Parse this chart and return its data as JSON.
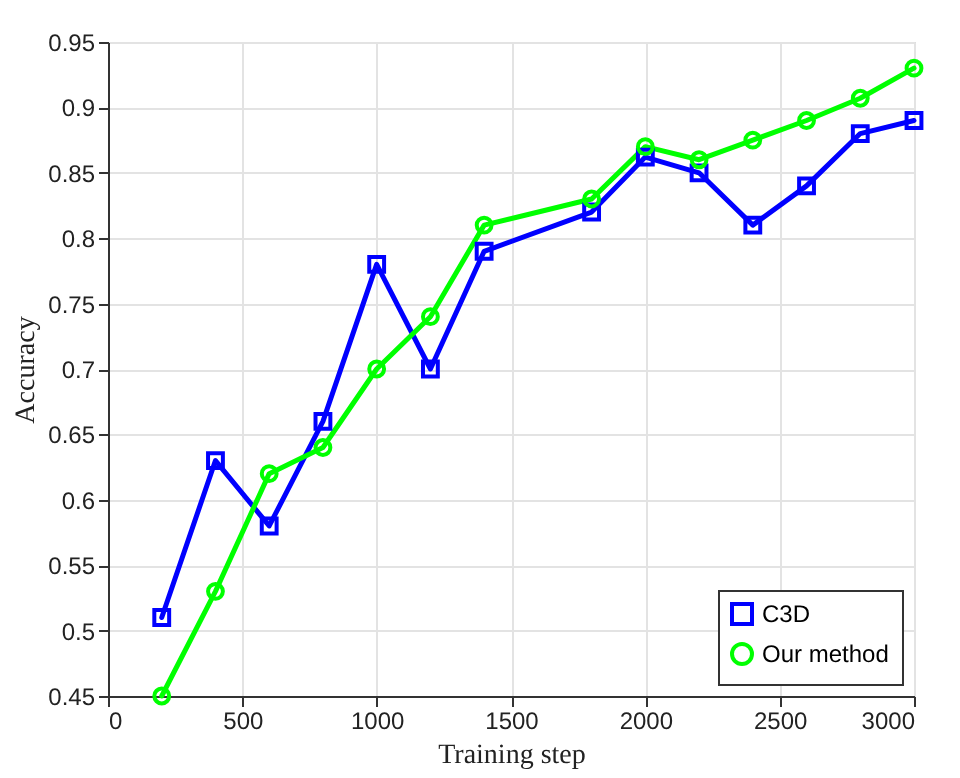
{
  "chart_data": {
    "type": "line",
    "xlabel": "Training step",
    "ylabel": "Accuracy",
    "xlim": [
      0,
      3000
    ],
    "xticks": [
      0,
      500,
      1000,
      1500,
      2000,
      2500,
      3000
    ],
    "ylim": [
      0.45,
      0.95
    ],
    "yticks": [
      0.45,
      0.5,
      0.55,
      0.6,
      0.65,
      0.7,
      0.75,
      0.8,
      0.85,
      0.9,
      0.95
    ],
    "grid": true,
    "legend": "bottom right",
    "line_style": "solid",
    "x": [
      200,
      400,
      600,
      800,
      1000,
      1200,
      1400,
      1800,
      2000,
      2200,
      2400,
      2600,
      2800,
      3000
    ],
    "series": [
      {
        "name": "C3D",
        "color": "#0000ff",
        "marker": "square",
        "values": [
          0.51,
          0.63,
          0.58,
          0.66,
          0.78,
          0.7,
          0.79,
          0.82,
          0.862,
          0.85,
          0.81,
          0.84,
          0.88,
          0.89
        ]
      },
      {
        "name": "Our method",
        "color": "#00ff00",
        "marker": "circle",
        "values": [
          0.45,
          0.53,
          0.62,
          0.64,
          0.7,
          0.74,
          0.81,
          0.83,
          0.87,
          0.86,
          0.875,
          0.89,
          0.907,
          0.93
        ]
      }
    ]
  }
}
